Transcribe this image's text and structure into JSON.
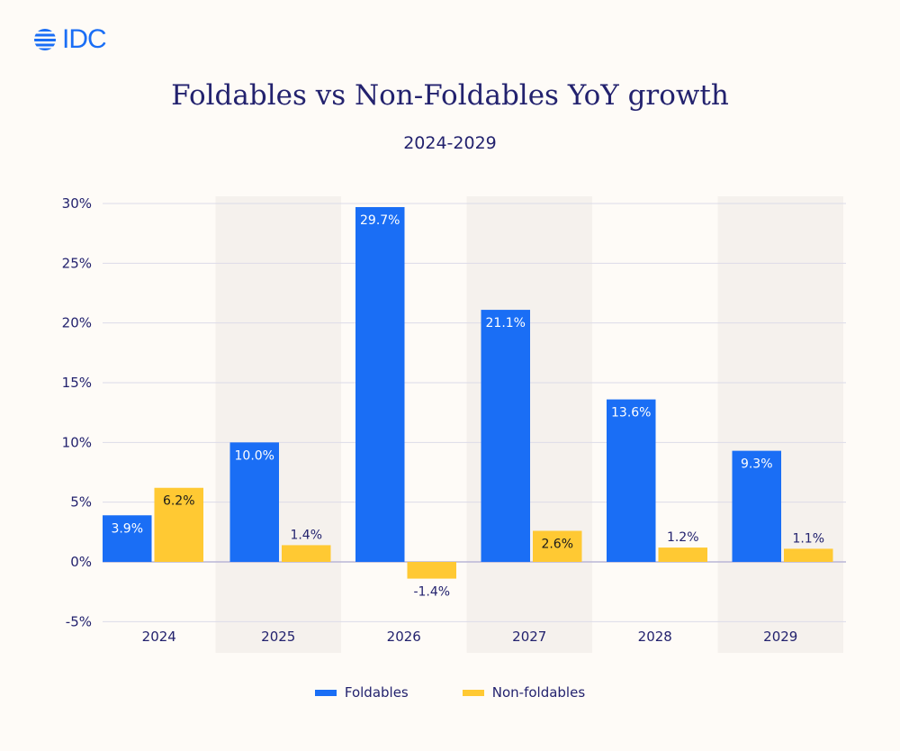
{
  "logo": {
    "text": "IDC",
    "color": "#1a6ef5"
  },
  "chart_data": {
    "type": "bar",
    "title": "Foldables vs Non-Foldables YoY growth",
    "subtitle": "2024-2029",
    "categories": [
      "2024",
      "2025",
      "2026",
      "2027",
      "2028",
      "2029"
    ],
    "series": [
      {
        "name": "Foldables",
        "color": "#1a6ef5",
        "values": [
          3.9,
          10.0,
          29.7,
          21.1,
          13.6,
          9.3
        ],
        "labels": [
          "3.9%",
          "10.0%",
          "29.7%",
          "21.1%",
          "13.6%",
          "9.3%"
        ]
      },
      {
        "name": "Non-foldables",
        "color": "#ffc933",
        "values": [
          6.2,
          1.4,
          -1.4,
          2.6,
          1.2,
          1.1
        ],
        "labels": [
          "6.2%",
          "1.4%",
          "-1.4%",
          "2.6%",
          "1.2%",
          "1.1%"
        ]
      }
    ],
    "ylim": [
      -5,
      30
    ],
    "yticks": [
      30,
      25,
      20,
      15,
      10,
      5,
      0,
      -5
    ],
    "ytick_labels": [
      "30%",
      "25%",
      "20%",
      "15%",
      "10%",
      "5%",
      "0%",
      "-5%"
    ],
    "xlabel": "",
    "ylabel": "",
    "grid": true,
    "legend_position": "bottom",
    "alternating_band_color": "#f5f1ed"
  }
}
